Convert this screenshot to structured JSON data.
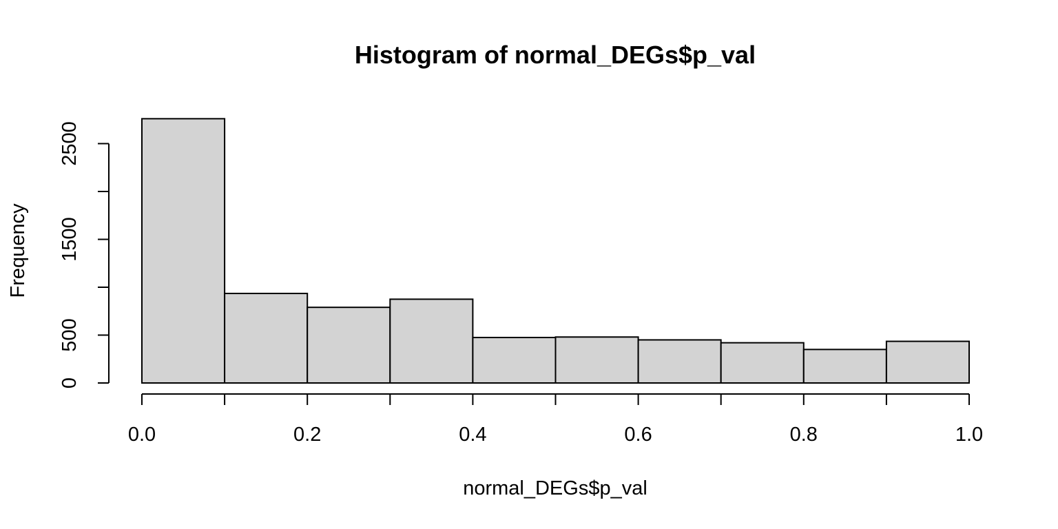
{
  "chart_data": {
    "type": "bar",
    "title": "Histogram of normal_DEGs$p_val",
    "xlabel": "normal_DEGs$p_val",
    "ylabel": "Frequency",
    "bins": [
      {
        "start": 0.0,
        "end": 0.1,
        "count": 2760
      },
      {
        "start": 0.1,
        "end": 0.2,
        "count": 935
      },
      {
        "start": 0.2,
        "end": 0.3,
        "count": 790
      },
      {
        "start": 0.3,
        "end": 0.4,
        "count": 875
      },
      {
        "start": 0.4,
        "end": 0.5,
        "count": 475
      },
      {
        "start": 0.5,
        "end": 0.6,
        "count": 480
      },
      {
        "start": 0.6,
        "end": 0.7,
        "count": 450
      },
      {
        "start": 0.7,
        "end": 0.8,
        "count": 420
      },
      {
        "start": 0.8,
        "end": 0.9,
        "count": 350
      },
      {
        "start": 0.9,
        "end": 1.0,
        "count": 435
      }
    ],
    "xlim": [
      0,
      1
    ],
    "ylim": [
      0,
      2760
    ],
    "x_ticks": [
      {
        "value": 0.0,
        "label": "0.0"
      },
      {
        "value": 0.2,
        "label": "0.2"
      },
      {
        "value": 0.4,
        "label": "0.4"
      },
      {
        "value": 0.6,
        "label": "0.6"
      },
      {
        "value": 0.8,
        "label": "0.8"
      },
      {
        "value": 1.0,
        "label": "1.0"
      }
    ],
    "y_ticks": [
      {
        "value": 0,
        "label": "0"
      },
      {
        "value": 500,
        "label": "500"
      },
      {
        "value": 1000,
        "label": ""
      },
      {
        "value": 1500,
        "label": "1500"
      },
      {
        "value": 2000,
        "label": ""
      },
      {
        "value": 2500,
        "label": "2500"
      }
    ],
    "x_minor_ticks": [
      0.1,
      0.3,
      0.5,
      0.7,
      0.9
    ],
    "grid": false,
    "bar_fill": "#d3d3d3",
    "bar_edge": "#000000"
  }
}
